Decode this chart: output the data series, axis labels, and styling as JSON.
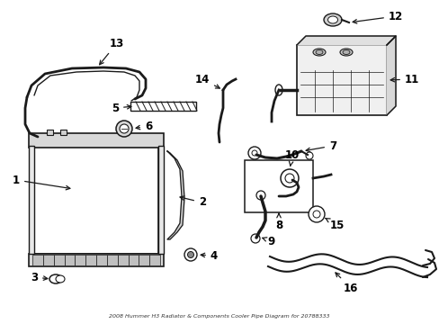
{
  "background_color": "#ffffff",
  "line_color": "#1a1a1a",
  "label_color": "#000000",
  "figsize": [
    4.89,
    3.6
  ],
  "dpi": 100,
  "title_text": "2008 Hummer H3 Radiator & Components Cooler Pipe Diagram for 20788333"
}
